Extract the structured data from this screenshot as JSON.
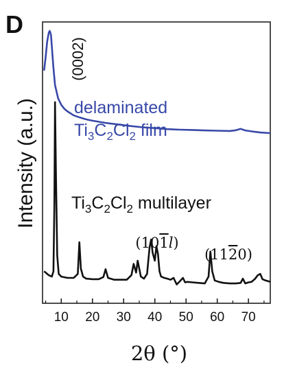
{
  "panel_label": "D",
  "chart_data": {
    "type": "line",
    "xlabel": "2θ (°)",
    "ylabel": "Intensity (a.u.)",
    "xlim": [
      4,
      77
    ],
    "x_ticks": [
      10,
      20,
      30,
      40,
      50,
      60,
      70
    ],
    "ylim": [
      0,
      1
    ],
    "y_tick_labels_shown": false,
    "grid": false,
    "series": [
      {
        "name": "delaminated Ti3C2Cl2 film",
        "color": "#3848a8",
        "label_lines": [
          "delaminated",
          "Ti3C2Cl2 film"
        ],
        "x": [
          4.5,
          5.0,
          5.5,
          6.0,
          6.3,
          6.7,
          7.0,
          7.5,
          8.0,
          9.0,
          10.0,
          11.0,
          12.0,
          14.0,
          16.0,
          18.0,
          20.0,
          24.0,
          28.0,
          32.0,
          36.0,
          40.0,
          44.0,
          48.0,
          52.0,
          56.0,
          60.0,
          64.0,
          66.0,
          67.5,
          69.0,
          72.0,
          74.0,
          77.0
        ],
        "y": [
          0.85,
          0.9,
          0.96,
          0.993,
          1.0,
          0.985,
          0.94,
          0.86,
          0.795,
          0.745,
          0.72,
          0.705,
          0.695,
          0.68,
          0.672,
          0.665,
          0.66,
          0.652,
          0.646,
          0.64,
          0.635,
          0.632,
          0.628,
          0.626,
          0.625,
          0.623,
          0.622,
          0.621,
          0.624,
          0.629,
          0.623,
          0.618,
          0.615,
          0.613
        ]
      },
      {
        "name": "Ti3C2Cl2 multilayer",
        "color": "#111111",
        "label_lines": [
          "Ti3C2Cl2 multilayer"
        ],
        "x": [
          4.5,
          6.0,
          7.0,
          7.5,
          7.8,
          8.0,
          8.3,
          8.7,
          9.2,
          10.0,
          12.0,
          14.0,
          15.3,
          15.8,
          16.3,
          17.0,
          18.0,
          20.0,
          22.0,
          23.5,
          24.2,
          25.0,
          27.0,
          29.0,
          31.0,
          32.5,
          33.2,
          34.0,
          34.5,
          35.5,
          36.5,
          37.5,
          38.3,
          38.8,
          39.3,
          40.0,
          40.5,
          41.0,
          41.5,
          42.0,
          43.0,
          44.0,
          45.0,
          46.0,
          47.0,
          48.0,
          49.0,
          49.7,
          50.5,
          52.0,
          54.0,
          56.0,
          57.2,
          57.8,
          58.4,
          59.2,
          60.5,
          62.0,
          64.0,
          66.0,
          67.5,
          68.2,
          69.0,
          70.0,
          71.0,
          72.0,
          73.0,
          73.8,
          74.5,
          75.5,
          77.0
        ],
        "y": [
          0.09,
          0.075,
          0.07,
          0.09,
          0.35,
          0.73,
          0.45,
          0.15,
          0.08,
          0.07,
          0.065,
          0.065,
          0.08,
          0.2,
          0.1,
          0.07,
          0.062,
          0.06,
          0.06,
          0.068,
          0.098,
          0.065,
          0.058,
          0.058,
          0.058,
          0.075,
          0.118,
          0.085,
          0.13,
          0.07,
          0.062,
          0.08,
          0.18,
          0.21,
          0.16,
          0.13,
          0.185,
          0.155,
          0.09,
          0.07,
          0.065,
          0.062,
          0.058,
          0.065,
          0.04,
          0.052,
          0.065,
          0.048,
          0.05,
          0.048,
          0.046,
          0.044,
          0.07,
          0.165,
          0.09,
          0.055,
          0.05,
          0.046,
          0.044,
          0.044,
          0.046,
          0.062,
          0.044,
          0.048,
          0.05,
          0.06,
          0.075,
          0.08,
          0.06,
          0.055,
          0.05
        ]
      }
    ],
    "annotations": [
      {
        "text": "(0002)",
        "x": 10,
        "y": 0.93,
        "rotate": -90
      },
      {
        "text": "(101̄l)",
        "x": 38.5,
        "y": 0.26,
        "italic_last": true
      },
      {
        "text": "(112̄0)",
        "x": 58,
        "y": 0.21
      }
    ]
  }
}
